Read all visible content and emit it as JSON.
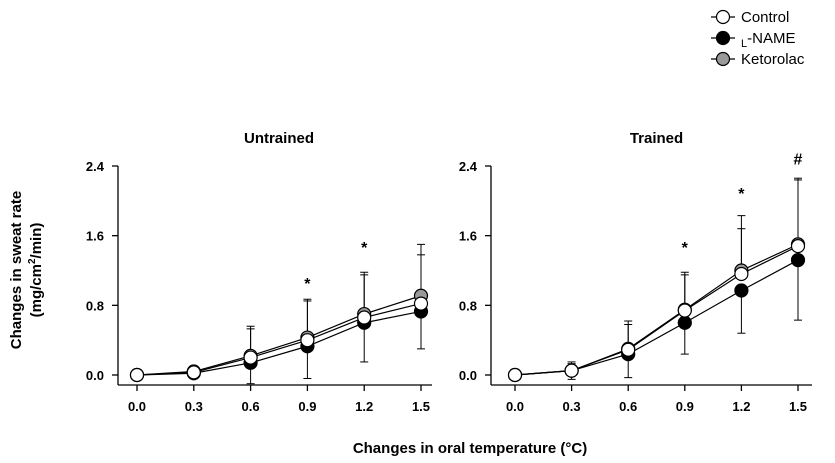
{
  "chart_data": {
    "type": "line",
    "xlabel": "Changes in oral temperature (°C)",
    "ylabel_line1": "Changes in sweat rate",
    "ylabel_line2_prefix": "(mg/cm",
    "ylabel_line2_sup": "2",
    "ylabel_line2_suffix": "/min)",
    "xlim": [
      0.0,
      1.5
    ],
    "ylim": [
      0.0,
      2.4
    ],
    "xticks": [
      "0.0",
      "0.3",
      "0.6",
      "0.9",
      "1.2",
      "1.5"
    ],
    "yticks": [
      "0.0",
      "0.8",
      "1.6",
      "2.4"
    ],
    "legend": {
      "placement": "top-right",
      "entries": [
        {
          "name": "Control",
          "prefix": "",
          "sub": "",
          "suffix": "Control",
          "fill": "#ffffff"
        },
        {
          "name": "L-NAME",
          "prefix": "",
          "sub": "L",
          "suffix": "-NAME",
          "fill": "#000000"
        },
        {
          "name": "Ketorolac",
          "prefix": "",
          "sub": "",
          "suffix": "Ketorolac",
          "fill": "#9a9a9a"
        }
      ]
    },
    "panels": [
      {
        "title": "Untrained",
        "x": [
          0.0,
          0.3,
          0.6,
          0.9,
          1.2,
          1.5
        ],
        "series": [
          {
            "name": "Ketorolac",
            "fill": "#9a9a9a",
            "values": [
              0.0,
              0.04,
              0.22,
              0.43,
              0.7,
              0.91
            ],
            "err_upper": [
              0,
              0,
              0.56,
              0.87,
              1.18,
              1.5
            ],
            "err_lower": [
              0,
              0,
              0,
              0,
              0,
              0
            ]
          },
          {
            "name": "L-NAME",
            "fill": "#000000",
            "values": [
              0.0,
              0.02,
              0.14,
              0.33,
              0.6,
              0.73
            ],
            "err_upper": [
              0,
              0,
              0,
              0,
              0,
              0
            ],
            "err_lower": [
              0,
              0,
              -0.1,
              -0.04,
              0.15,
              0.3
            ]
          },
          {
            "name": "Control",
            "fill": "#ffffff",
            "values": [
              0.0,
              0.03,
              0.2,
              0.4,
              0.66,
              0.82
            ],
            "err_upper": [
              0,
              0,
              0.53,
              0.85,
              1.15,
              1.38
            ],
            "err_lower": [
              0,
              0,
              0,
              0,
              0,
              0
            ]
          }
        ],
        "annotations": [
          {
            "text": "*",
            "x": 0.9,
            "y": 0.99
          },
          {
            "text": "*",
            "x": 1.2,
            "y": 1.4
          }
        ]
      },
      {
        "title": "Trained",
        "x": [
          0.0,
          0.3,
          0.6,
          0.9,
          1.2,
          1.5
        ],
        "series": [
          {
            "name": "Ketorolac",
            "fill": "#9a9a9a",
            "values": [
              0.0,
              0.05,
              0.3,
              0.75,
              1.2,
              1.5
            ],
            "err_upper": [
              0,
              0.15,
              0.62,
              1.18,
              1.83,
              2.26
            ],
            "err_lower": [
              0,
              0,
              0,
              0,
              0,
              0
            ]
          },
          {
            "name": "L-NAME",
            "fill": "#000000",
            "values": [
              0.0,
              0.05,
              0.24,
              0.6,
              0.97,
              1.32
            ],
            "err_upper": [
              0,
              0,
              0,
              0,
              0,
              0
            ],
            "err_lower": [
              0,
              -0.05,
              -0.03,
              0.24,
              0.48,
              0.63
            ]
          },
          {
            "name": "Control",
            "fill": "#ffffff",
            "values": [
              0.0,
              0.05,
              0.29,
              0.74,
              1.16,
              1.48
            ],
            "err_upper": [
              0,
              0.13,
              0.58,
              1.15,
              1.68,
              2.24
            ],
            "err_lower": [
              0,
              0,
              0,
              0,
              0,
              0
            ]
          }
        ],
        "annotations": [
          {
            "text": "*",
            "x": 0.9,
            "y": 1.4
          },
          {
            "text": "*",
            "x": 1.2,
            "y": 2.02
          },
          {
            "text": "#",
            "x": 1.5,
            "y": 2.42
          }
        ]
      }
    ]
  }
}
